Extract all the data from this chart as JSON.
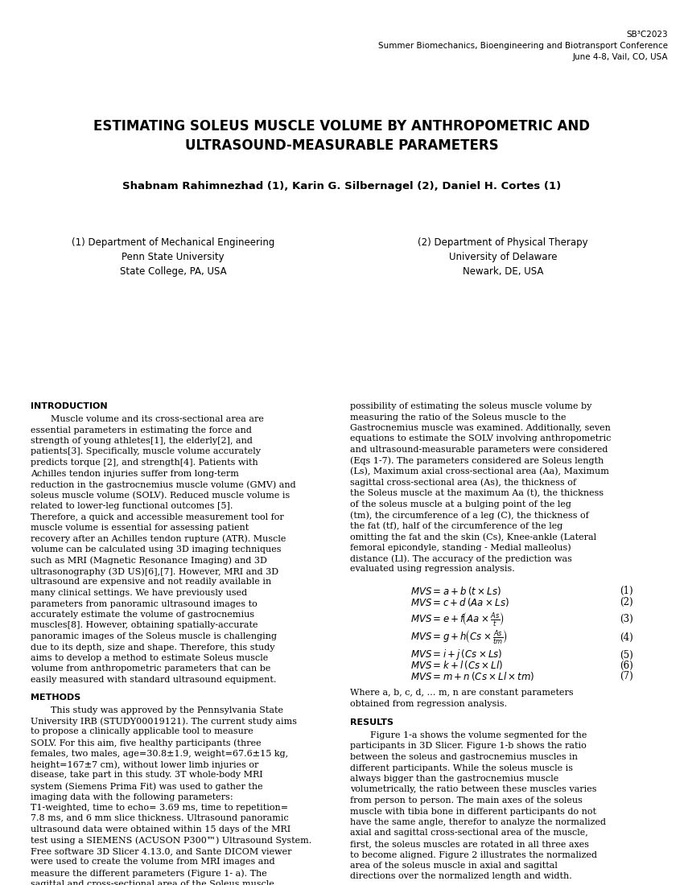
{
  "background_color": "#ffffff",
  "header_line1": "SB³C2023",
  "header_line2": "Summer Biomechanics, Bioengineering and Biotransport Conference",
  "header_line3": "June 4-8, Vail, CO, USA",
  "title_line1": "ESTIMATING SOLEUS MUSCLE VOLUME BY ANTHROPOMETRIC AND",
  "title_line2": "ULTRASOUND-MEASURABLE PARAMETERS",
  "authors": "Shabnam Rahimnezhad (1), Karin G. Silbernagel (2), Daniel H. Cortes (1)",
  "affil1_line1": "(1) Department of Mechanical Engineering",
  "affil1_line2": "Penn State University",
  "affil1_line3": "State College, PA, USA",
  "affil2_line1": "(2) Department of Physical Therapy",
  "affil2_line2": "University of Delaware",
  "affil2_line3": "Newark, DE, USA",
  "section_intro": "INTRODUCTION",
  "intro_left": "Muscle volume and its cross-sectional area are essential parameters in estimating the force and strength of young athletes[1], the elderly[2], and patients[3]. Specifically, muscle volume accurately predicts torque [2], and strength[4]. Patients with Achilles tendon injuries suffer from long-term reduction in the gastrocnemius muscle volume (GMV) and soleus muscle volume (SOLV). Reduced muscle volume is related to lower-leg functional outcomes [5]. Therefore, a quick and accessible measurement tool for muscle volume is essential for assessing patient recovery after an Achilles tendon rupture (ATR). Muscle volume can be calculated using 3D imaging techniques such as MRI (Magnetic Resonance Imaging) and 3D ultrasonography (3D US)[6],[7]. However, MRI and 3D ultrasound are expensive and not readily available in many clinical settings. We have previously used parameters from panoramic ultrasound images to accurately estimate the volume of gastrocnemius muscles[8]. However, obtaining spatially-accurate panoramic images of the Soleus muscle is challenging due to its depth, size and shape. Therefore, this study aims to develop a method to estimate Soleus muscle volume from anthropometric parameters that can be easily measured with standard ultrasound equipment.",
  "intro_right": "possibility of estimating the soleus muscle volume by measuring the ratio of the Soleus muscle to the Gastrocnemius muscle was examined. Additionally, seven equations to estimate the SOLV involving anthropometric and ultrasound-measurable parameters were considered (Eqs 1-7). The parameters considered are Soleus length (Ls), Maximum axial cross-sectional area (Aa), Maximum sagittal cross-sectional area (As), the thickness of the Soleus muscle at the maximum Aa (t), the thickness of the soleus muscle at a bulging point of the leg (tm), the circumference of a leg (C), the thickness of the fat (tf), half of the circumference of the leg omitting the fat and the skin (Cs), Knee-ankle (Lateral femoral epicondyle, standing - Medial malleolus) distance (Ll). The accuracy of the prediction was evaluated using regression analysis.",
  "section_methods": "METHODS",
  "methods_text": "This study was approved by the Pennsylvania State University IRB (STUDY00019121). The current study aims to propose a clinically applicable tool to measure SOLV. For this aim, five healthy participants (three females, two males, age=30.8±1.9, weight=67.6±15 kg, height=167±7 cm), without lower limb injuries or disease, take part in this study. 3T whole-body MRI system (Siemens Prima Fit) was used to gather the imaging data with the following parameters: T1-weighted, time to echo= 3.69 ms, time to repetition= 7.8 ms, and 6 mm slice thickness. Ultrasound panoramic ultrasound data were obtained within 15 days of the MRI test using a SIEMENS (ACUSON P300™) Ultrasound System. Free software 3D Slicer 4.13.0, and Sante DICOM viewer were used to create the volume from MRI images and measure the different parameters (Figure 1- a). The sagittal and cross-sectional area of the Soleus muscle in five participants are normalized and plotted, to examine the possibility of defining a shape factor (The ratio between muscle volume and predictor factors) for this muscle. Furthermore, the",
  "results_header": "RESULTS",
  "results_text": "Figure 1-a shows the volume segmented for the participants in 3D Slicer. Figure 1-b shows the ratio between the soleus and gastrocnemius muscles in different participants. While the soleus muscle is always bigger than the gastrocnemius muscle volumetrically, the ratio between these muscles varies from person to person. The main axes of the soleus muscle with tibia bone in different participants do not have the same angle, therefor to analyze the normalized axial and sagittal cross-sectional area of the muscle, first, the soleus muscles are rotated in all three axes to become aligned. Figure 2 illustrates the normalized area of the soleus muscle in axial and sagittal directions over the normalized length and width.",
  "where_text": "Where a, b, c, d, … m, n are constant parameters obtained from regression analysis."
}
